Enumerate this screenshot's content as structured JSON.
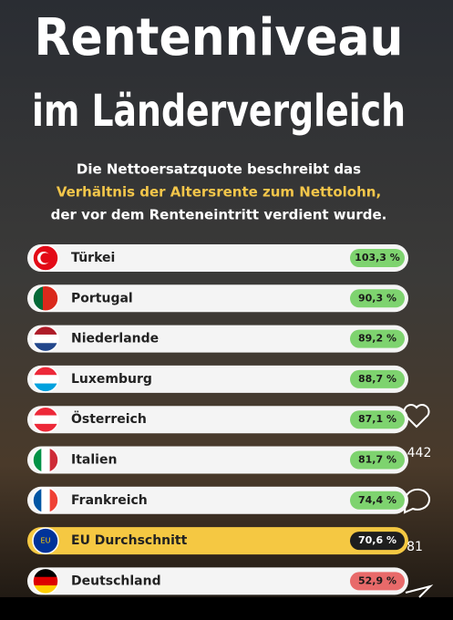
{
  "title": [
    "Rentenniveau",
    "im Ländervergleich"
  ],
  "description": [
    "Die Nettoersatzquote beschreibt das",
    "Verhältnis der Altersrente zum Nettolohn,",
    "der vor dem Renteneintritt verdient wurde."
  ],
  "rows": [
    {
      "country": "Türkei",
      "value": "103,3 %"
    },
    {
      "country": "Portugal",
      "value": "90,3 %"
    },
    {
      "country": "Niederlande",
      "value": "89,2 %"
    },
    {
      "country": "Luxemburg",
      "value": "88,7 %"
    },
    {
      "country": "Österreich",
      "value": "87,1 %"
    },
    {
      "country": "Italien",
      "value": "81,7 %"
    },
    {
      "country": "Frankreich",
      "value": "74,4 %"
    },
    {
      "country": "EU Durchschnitt",
      "value": "70,6 %"
    },
    {
      "country": "Deutschland",
      "value": "52,9 %"
    }
  ],
  "eu_flag_text": "EU",
  "overlay": {
    "likes": "442",
    "comments": "81"
  }
}
